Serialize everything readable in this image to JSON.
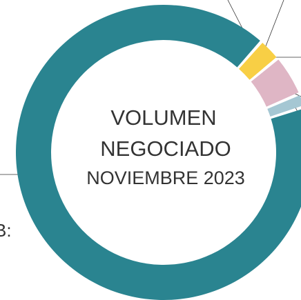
{
  "chart_data": {
    "type": "donut",
    "center_text": [
      "VOLUMEN",
      "NEGOCIADO",
      "NOVIEMBRE 2023"
    ],
    "annotation": "B:",
    "categories": [
      null,
      null,
      null,
      null
    ],
    "values": [
      91.5,
      2.5,
      4.5,
      1.5
    ],
    "colors": [
      "#2a8490",
      "#f8cf45",
      "#dfb6c5",
      "#a5c7d3"
    ]
  }
}
